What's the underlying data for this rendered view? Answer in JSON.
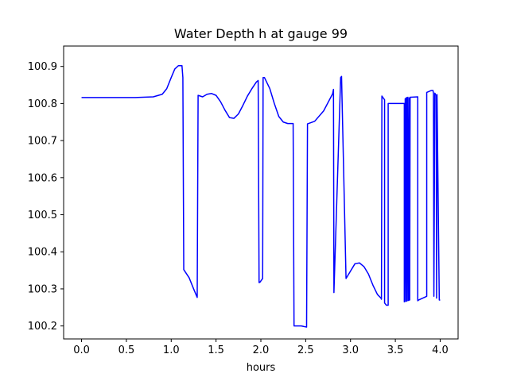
{
  "chart_data": {
    "type": "line",
    "title": "Water Depth h at gauge 99",
    "xlabel": "hours",
    "ylabel": "",
    "xlim": [
      -0.2,
      4.2
    ],
    "ylim": [
      100.165,
      100.955
    ],
    "x_ticks": [
      0.0,
      0.5,
      1.0,
      1.5,
      2.0,
      2.5,
      3.0,
      3.5,
      4.0
    ],
    "x_tick_labels": [
      "0.0",
      "0.5",
      "1.0",
      "1.5",
      "2.0",
      "2.5",
      "3.0",
      "3.5",
      "4.0"
    ],
    "y_ticks": [
      100.2,
      100.3,
      100.4,
      100.5,
      100.6,
      100.7,
      100.8,
      100.9
    ],
    "y_tick_labels": [
      "100.2",
      "100.3",
      "100.4",
      "100.5",
      "100.6",
      "100.7",
      "100.8",
      "100.9"
    ],
    "grid": false,
    "series": [
      {
        "color": "#0000ff",
        "x": [
          0.0,
          0.2,
          0.4,
          0.6,
          0.8,
          0.9,
          0.95,
          1.0,
          1.04,
          1.08,
          1.12,
          1.13,
          1.14,
          1.2,
          1.25,
          1.29,
          1.3,
          1.35,
          1.4,
          1.45,
          1.5,
          1.55,
          1.6,
          1.65,
          1.7,
          1.75,
          1.8,
          1.85,
          1.9,
          1.95,
          1.97,
          1.98,
          1.99,
          2.02,
          2.025,
          2.04,
          2.1,
          2.15,
          2.2,
          2.25,
          2.3,
          2.36,
          2.37,
          2.45,
          2.51,
          2.52,
          2.6,
          2.7,
          2.8,
          2.81,
          2.815,
          2.82,
          2.89,
          2.9,
          2.95,
          3.0,
          3.05,
          3.1,
          3.15,
          3.2,
          3.25,
          3.3,
          3.34,
          3.345,
          3.35,
          3.38,
          3.38,
          3.4,
          3.42,
          3.42,
          3.6,
          3.6,
          3.61,
          3.615,
          3.62,
          3.625,
          3.63,
          3.64,
          3.64,
          3.65,
          3.655,
          3.66,
          3.665,
          3.67,
          3.75,
          3.75,
          3.76,
          3.85,
          3.85,
          3.9,
          3.92,
          3.925,
          3.93,
          3.94,
          3.955,
          3.96,
          3.965,
          3.99,
          4.0
        ],
        "y": [
          100.816,
          100.816,
          100.816,
          100.816,
          100.818,
          100.825,
          100.84,
          100.87,
          100.893,
          100.902,
          100.902,
          100.87,
          100.352,
          100.33,
          100.3,
          100.277,
          100.822,
          100.818,
          100.825,
          100.827,
          100.822,
          100.805,
          100.782,
          100.762,
          100.76,
          100.772,
          100.795,
          100.82,
          100.84,
          100.858,
          100.862,
          100.317,
          100.318,
          100.328,
          100.87,
          100.87,
          100.84,
          100.8,
          100.765,
          100.75,
          100.746,
          100.746,
          100.2,
          100.2,
          100.197,
          100.745,
          100.752,
          100.78,
          100.826,
          100.838,
          100.29,
          100.33,
          100.87,
          100.873,
          100.328,
          100.348,
          100.368,
          100.37,
          100.36,
          100.34,
          100.31,
          100.285,
          100.275,
          100.272,
          100.82,
          100.81,
          100.262,
          100.256,
          100.256,
          100.8,
          100.8,
          100.265,
          100.813,
          100.266,
          100.815,
          100.267,
          100.816,
          100.268,
          100.817,
          100.269,
          100.815,
          100.27,
          100.817,
          100.817,
          100.818,
          100.268,
          100.27,
          100.28,
          100.83,
          100.835,
          100.835,
          100.828,
          100.28,
          100.828,
          100.822,
          100.275,
          100.824,
          100.27,
          100.27
        ]
      }
    ]
  }
}
